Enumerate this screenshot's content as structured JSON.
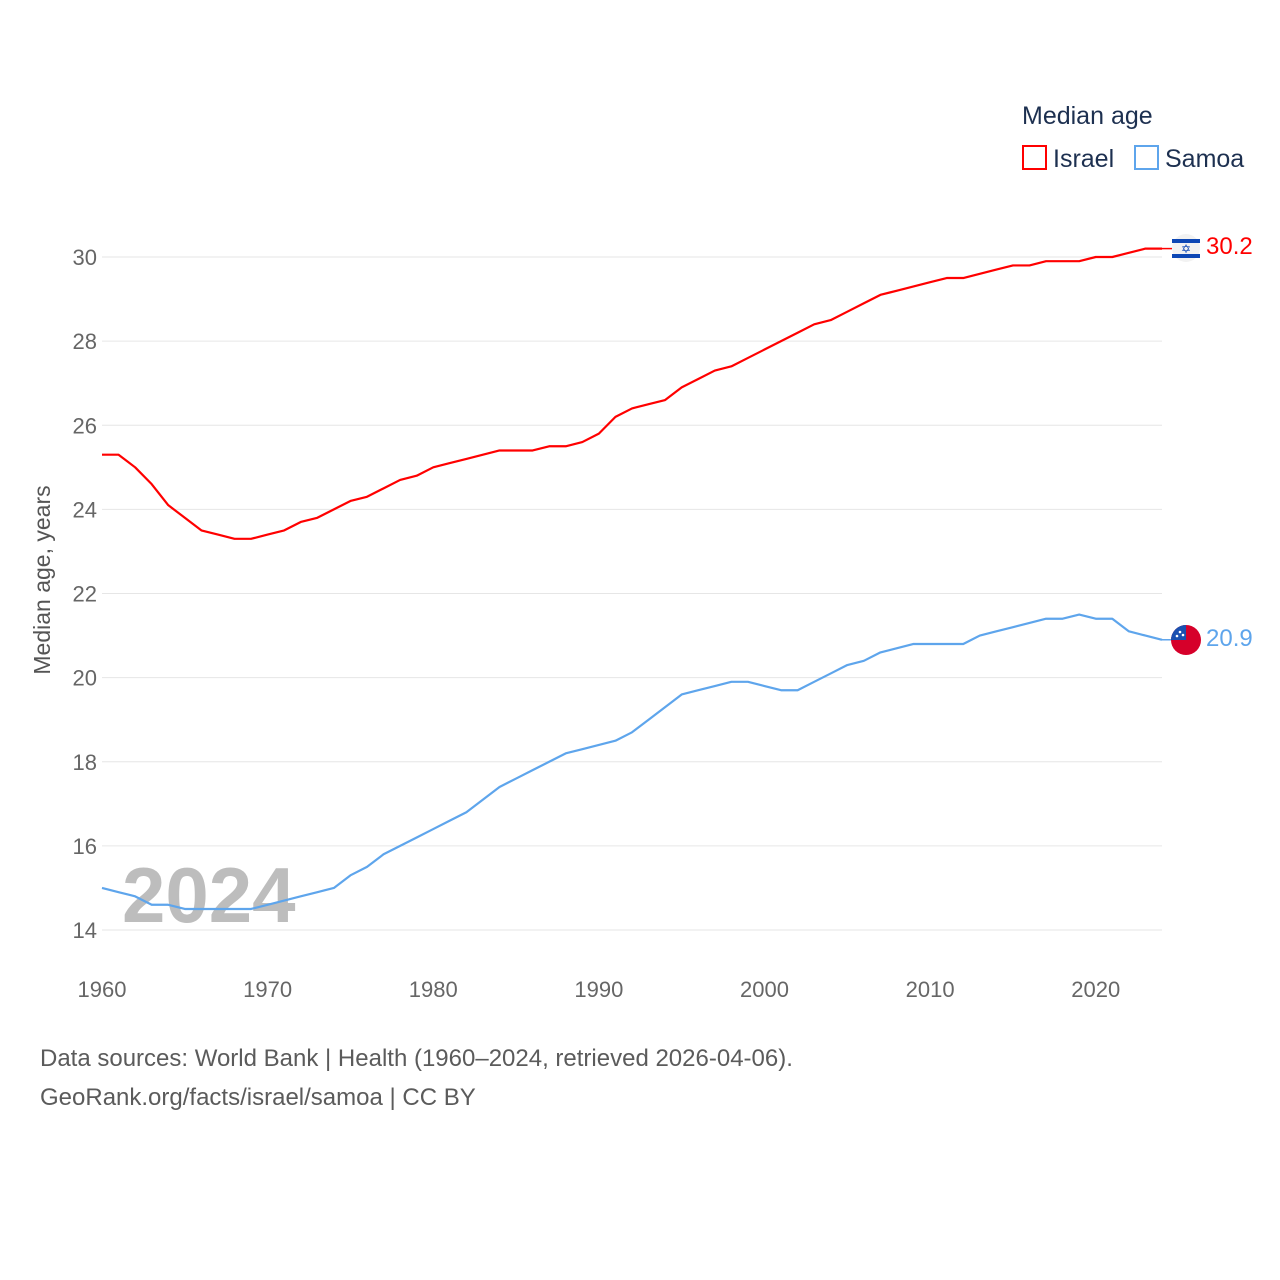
{
  "colors": {
    "israel": "#ff0000",
    "samoa": "#5ea5ec",
    "text": "#1d3050"
  },
  "footer": {
    "line1": "Data sources: World Bank | Health (1960–2024, retrieved 2026-04-06).",
    "line2": "GeoRank.org/facts/israel/samoa | CC BY"
  },
  "chart_data": {
    "type": "line",
    "title": "Median age",
    "xlabel": "",
    "ylabel": "Median age, years",
    "watermark": "2024",
    "xlim": [
      1960,
      2024
    ],
    "ylim": [
      14,
      30
    ],
    "xticks": [
      "1960",
      "1970",
      "1980",
      "1990",
      "2000",
      "2010",
      "2020"
    ],
    "yticks": [
      "14",
      "16",
      "18",
      "20",
      "22",
      "24",
      "26",
      "28",
      "30"
    ],
    "grid": true,
    "legend_position": "top-right",
    "x": [
      1960,
      1961,
      1962,
      1963,
      1964,
      1965,
      1966,
      1967,
      1968,
      1969,
      1970,
      1971,
      1972,
      1973,
      1974,
      1975,
      1976,
      1977,
      1978,
      1979,
      1980,
      1981,
      1982,
      1983,
      1984,
      1985,
      1986,
      1987,
      1988,
      1989,
      1990,
      1991,
      1992,
      1993,
      1994,
      1995,
      1996,
      1997,
      1998,
      1999,
      2000,
      2001,
      2002,
      2003,
      2004,
      2005,
      2006,
      2007,
      2008,
      2009,
      2010,
      2011,
      2012,
      2013,
      2014,
      2015,
      2016,
      2017,
      2018,
      2019,
      2020,
      2021,
      2022,
      2023,
      2024
    ],
    "series": [
      {
        "name": "Israel",
        "end_label": "30.2",
        "flag": "israel-flag",
        "values": [
          25.3,
          25.3,
          25.0,
          24.6,
          24.1,
          23.8,
          23.5,
          23.4,
          23.3,
          23.3,
          23.4,
          23.5,
          23.7,
          23.8,
          24.0,
          24.2,
          24.3,
          24.5,
          24.7,
          24.8,
          25.0,
          25.1,
          25.2,
          25.3,
          25.4,
          25.4,
          25.4,
          25.5,
          25.5,
          25.6,
          25.8,
          26.2,
          26.4,
          26.5,
          26.6,
          26.9,
          27.1,
          27.3,
          27.4,
          27.6,
          27.8,
          28.0,
          28.2,
          28.4,
          28.5,
          28.7,
          28.9,
          29.1,
          29.2,
          29.3,
          29.4,
          29.5,
          29.5,
          29.6,
          29.7,
          29.8,
          29.8,
          29.9,
          29.9,
          29.9,
          30.0,
          30.0,
          30.1,
          30.2,
          30.2
        ]
      },
      {
        "name": "Samoa",
        "end_label": "20.9",
        "flag": "samoa-flag",
        "values": [
          15.0,
          14.9,
          14.8,
          14.6,
          14.6,
          14.5,
          14.5,
          14.5,
          14.5,
          14.5,
          14.6,
          14.7,
          14.8,
          14.9,
          15.0,
          15.3,
          15.5,
          15.8,
          16.0,
          16.2,
          16.4,
          16.6,
          16.8,
          17.1,
          17.4,
          17.6,
          17.8,
          18.0,
          18.2,
          18.3,
          18.4,
          18.5,
          18.7,
          19.0,
          19.3,
          19.6,
          19.7,
          19.8,
          19.9,
          19.9,
          19.8,
          19.7,
          19.7,
          19.9,
          20.1,
          20.3,
          20.4,
          20.6,
          20.7,
          20.8,
          20.8,
          20.8,
          20.8,
          21.0,
          21.1,
          21.2,
          21.3,
          21.4,
          21.4,
          21.5,
          21.4,
          21.4,
          21.1,
          21.0,
          20.9
        ]
      }
    ]
  }
}
